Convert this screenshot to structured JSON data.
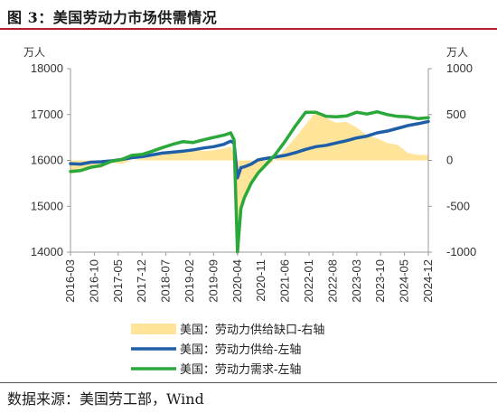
{
  "figure": {
    "title": "图 3：美国劳动力市场供需情况",
    "source": "数据来源：美国劳工部，Wind"
  },
  "colors": {
    "gap_fill": "#ffe49a",
    "supply_line": "#1f5fa8",
    "demand_line": "#2aa83a",
    "axis": "#999999",
    "title_rule": "#b3202a"
  },
  "chart_data": {
    "type": "line",
    "left_axis": {
      "unit": "万人",
      "ylim": [
        14000,
        18000
      ],
      "ticks": [
        "14000",
        "15000",
        "16000",
        "17000",
        "18000"
      ]
    },
    "right_axis": {
      "unit": "万人",
      "ylim": [
        -1000,
        1000
      ],
      "ticks": [
        "-1000",
        "-500",
        "0",
        "500",
        "1000"
      ]
    },
    "x_tick_labels": [
      "2016-03",
      "2016-10",
      "2017-05",
      "2017-12",
      "2018-07",
      "2019-02",
      "2019-09",
      "2020-04",
      "2020-11",
      "2021-06",
      "2022-01",
      "2022-08",
      "2023-03",
      "2023-10",
      "2024-05",
      "2024-12"
    ],
    "x_range": [
      "2016-03",
      "2024-12"
    ],
    "legend_position": "bottom",
    "series": [
      {
        "name": "美国：劳动力供给缺口-右轴",
        "style": "area",
        "axis": "right",
        "x": [
          "2016-03",
          "2016-06",
          "2016-09",
          "2016-12",
          "2017-03",
          "2017-06",
          "2017-09",
          "2017-12",
          "2018-03",
          "2018-06",
          "2018-09",
          "2018-12",
          "2019-03",
          "2019-06",
          "2019-09",
          "2019-12",
          "2020-02",
          "2020-03",
          "2020-04",
          "2020-05",
          "2020-06",
          "2020-08",
          "2020-10",
          "2020-12",
          "2021-03",
          "2021-06",
          "2021-09",
          "2021-12",
          "2022-03",
          "2022-06",
          "2022-09",
          "2022-12",
          "2023-03",
          "2023-06",
          "2023-09",
          "2023-12",
          "2024-03",
          "2024-06",
          "2024-09",
          "2024-12"
        ],
        "values": [
          -150,
          -120,
          -90,
          -80,
          -20,
          -40,
          0,
          20,
          40,
          60,
          90,
          110,
          120,
          100,
          110,
          130,
          150,
          50,
          -1000,
          -550,
          -400,
          -250,
          -150,
          -80,
          0,
          120,
          250,
          390,
          530,
          460,
          410,
          420,
          360,
          270,
          240,
          190,
          170,
          80,
          60,
          60
        ]
      },
      {
        "name": "美国：劳动力供给-左轴",
        "style": "line",
        "axis": "left",
        "x": [
          "2016-03",
          "2016-06",
          "2016-09",
          "2016-12",
          "2017-03",
          "2017-06",
          "2017-09",
          "2017-12",
          "2018-03",
          "2018-06",
          "2018-09",
          "2018-12",
          "2019-03",
          "2019-06",
          "2019-09",
          "2019-12",
          "2020-02",
          "2020-03",
          "2020-04",
          "2020-05",
          "2020-06",
          "2020-08",
          "2020-10",
          "2020-12",
          "2021-03",
          "2021-06",
          "2021-09",
          "2021-12",
          "2022-03",
          "2022-06",
          "2022-09",
          "2022-12",
          "2023-03",
          "2023-06",
          "2023-09",
          "2023-12",
          "2024-03",
          "2024-06",
          "2024-09",
          "2024-12"
        ],
        "values": [
          15930,
          15920,
          15960,
          15970,
          15990,
          16020,
          16060,
          16080,
          16120,
          16160,
          16180,
          16200,
          16230,
          16270,
          16300,
          16350,
          16420,
          16380,
          15620,
          15840,
          15860,
          15920,
          16010,
          16040,
          16070,
          16110,
          16170,
          16240,
          16300,
          16330,
          16380,
          16430,
          16490,
          16530,
          16600,
          16640,
          16700,
          16760,
          16800,
          16850
        ]
      },
      {
        "name": "美国：劳动力需求-左轴",
        "style": "line",
        "axis": "left",
        "x": [
          "2016-03",
          "2016-06",
          "2016-09",
          "2016-12",
          "2017-03",
          "2017-06",
          "2017-09",
          "2017-12",
          "2018-03",
          "2018-06",
          "2018-09",
          "2018-12",
          "2019-03",
          "2019-06",
          "2019-09",
          "2019-12",
          "2020-02",
          "2020-03",
          "2020-04",
          "2020-05",
          "2020-06",
          "2020-08",
          "2020-10",
          "2020-12",
          "2021-03",
          "2021-06",
          "2021-09",
          "2021-12",
          "2022-03",
          "2022-06",
          "2022-09",
          "2022-12",
          "2023-03",
          "2023-06",
          "2023-09",
          "2023-12",
          "2024-03",
          "2024-06",
          "2024-09",
          "2024-12"
        ],
        "values": [
          15760,
          15780,
          15850,
          15890,
          15980,
          16020,
          16110,
          16130,
          16200,
          16280,
          16350,
          16410,
          16390,
          16450,
          16500,
          16550,
          16600,
          16450,
          14000,
          14950,
          15180,
          15500,
          15720,
          15880,
          16120,
          16420,
          16750,
          17050,
          17050,
          16960,
          16950,
          16970,
          17050,
          17010,
          17060,
          17000,
          16960,
          16950,
          16910,
          16930
        ]
      }
    ]
  }
}
